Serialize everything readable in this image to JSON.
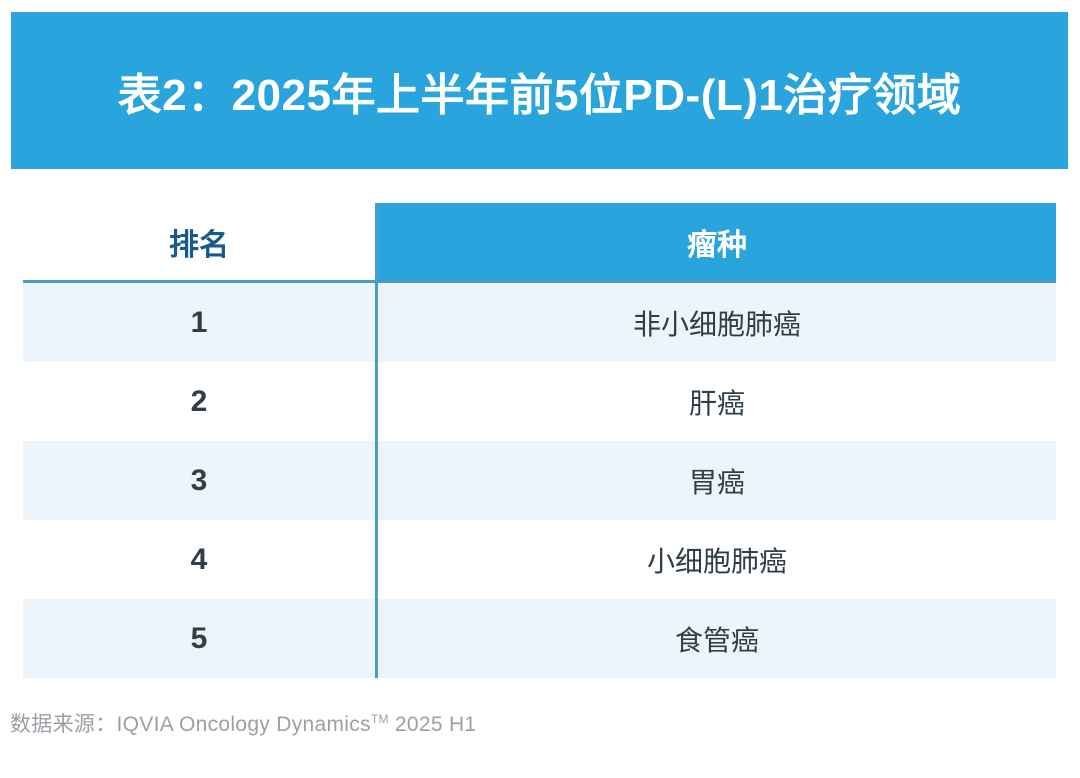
{
  "banner": {
    "title": "表2：2025年上半年前5位PD-(L)1治疗领域"
  },
  "table": {
    "headers": [
      {
        "label": "排名"
      },
      {
        "label": "瘤种"
      }
    ],
    "rows": [
      {
        "rank": "1",
        "tumor": "非小细胞肺癌"
      },
      {
        "rank": "2",
        "tumor": "肝癌"
      },
      {
        "rank": "3",
        "tumor": "胃癌"
      },
      {
        "rank": "4",
        "tumor": "小细胞肺癌"
      },
      {
        "rank": "5",
        "tumor": "食管癌"
      }
    ]
  },
  "footer": {
    "prefix": "数据来源：IQVIA Oncology Dynamics",
    "trademark": "TM",
    "suffix": " 2025 H1"
  },
  "colors": {
    "accent_blue": "#29a4dc",
    "stripe_blue": "#edf4fa",
    "divider_blue": "#4a9cc9",
    "rank_header_text": "#185a8e",
    "body_text": "#2f3e48",
    "footer_gray": "#9aa0a6"
  },
  "chart_data": {
    "type": "table",
    "title": "表2：2025年上半年前5位PD-(L)1治疗领域",
    "columns": [
      "排名",
      "瘤种"
    ],
    "rows": [
      [
        "1",
        "非小细胞肺癌"
      ],
      [
        "2",
        "肝癌"
      ],
      [
        "3",
        "胃癌"
      ],
      [
        "4",
        "小细胞肺癌"
      ],
      [
        "5",
        "食管癌"
      ]
    ],
    "source": "数据来源：IQVIA Oncology Dynamics™ 2025 H1",
    "layout": {
      "header_fill": "#29a4dc",
      "row_stripe_fill": "#edf4fa",
      "grid": "vertical-divider-only"
    }
  }
}
